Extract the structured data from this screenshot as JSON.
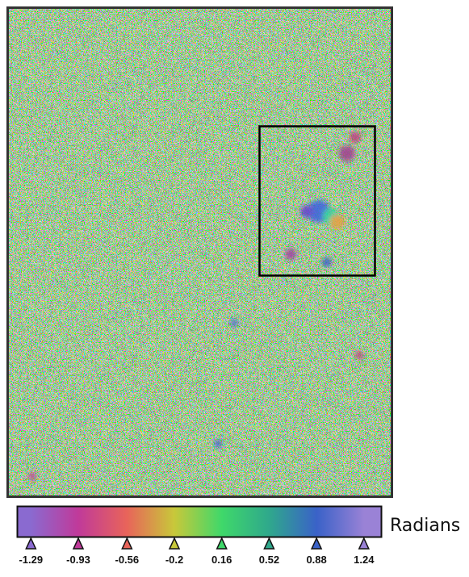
{
  "chart_data": {
    "type": "colorbar",
    "label": "Radians",
    "lim": [
      -1.39,
      1.37
    ],
    "ticks": [
      -1.29,
      -0.93,
      -0.56,
      -0.2,
      0.16,
      0.52,
      0.88,
      1.24
    ],
    "colors": [
      "#8a6ad0",
      "#c03a9a",
      "#e8645a",
      "#c8c83a",
      "#3fd86a",
      "#2fa88c",
      "#3a62c8",
      "#9a82d6"
    ]
  }
}
